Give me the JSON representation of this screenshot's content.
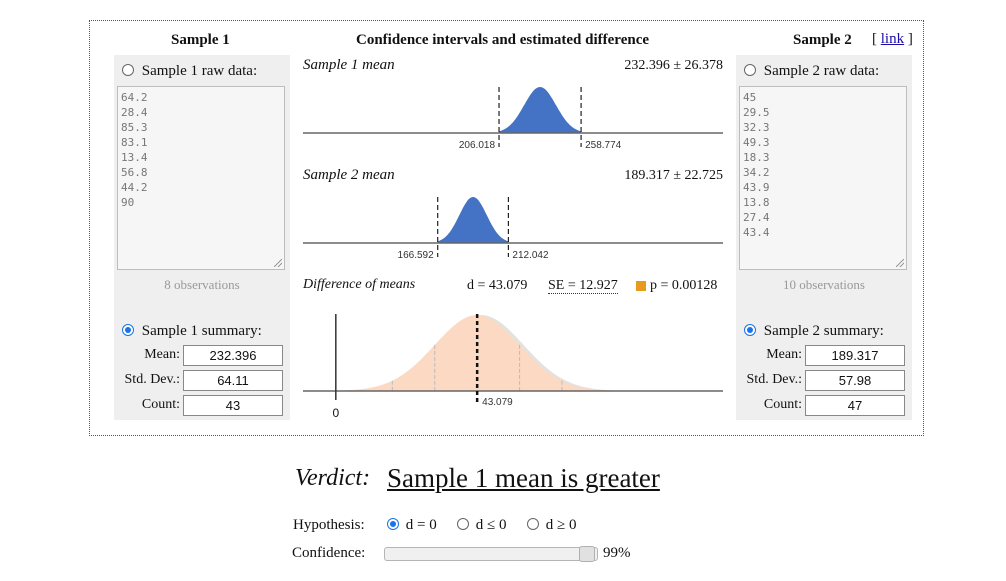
{
  "header": {
    "sample1_title": "Sample 1",
    "center_title": "Confidence intervals and estimated difference",
    "sample2_title": "Sample 2",
    "link_open": "[",
    "link_label": "link",
    "link_close": "]"
  },
  "sample1": {
    "raw_label": "Sample 1 raw data:",
    "raw_values": "64.2\n28.4\n85.3\n83.1\n13.4\n56.8\n44.2\n90",
    "observations": "8 observations",
    "summary_label": "Sample 1 summary:",
    "mean_label": "Mean:",
    "mean_value": "232.396",
    "sd_label": "Std. Dev.:",
    "sd_value": "64.11",
    "count_label": "Count:",
    "count_value": "43",
    "selected_mode": "summary"
  },
  "sample2": {
    "raw_label": "Sample 2 raw data:",
    "raw_values": "45\n29.5\n32.3\n49.3\n18.3\n34.2\n43.9\n13.8\n27.4\n43.4",
    "observations": "10 observations",
    "summary_label": "Sample 2 summary:",
    "mean_label": "Mean:",
    "mean_value": "189.317",
    "sd_label": "Std. Dev.:",
    "sd_value": "57.98",
    "count_label": "Count:",
    "count_value": "47",
    "selected_mode": "summary"
  },
  "plots": {
    "mean1": {
      "title": "Sample 1 mean",
      "value": "232.396 ± 26.378",
      "lo": "206.018",
      "hi": "258.774",
      "center": 232.396,
      "half": 26.378
    },
    "mean2": {
      "title": "Sample 2 mean",
      "value": "189.317 ± 22.725",
      "lo": "166.592",
      "hi": "212.042",
      "center": 189.317,
      "half": 22.725
    },
    "diff": {
      "title": "Difference of means",
      "d": "d = 43.079",
      "se": "SE = 12.927",
      "p": "p = 0.00128",
      "d_tick": "43.079",
      "zero_tick": "0",
      "d_value": 43.079,
      "se_value": 12.927
    }
  },
  "colors": {
    "mean_fill": "#4472c4",
    "diff_fill": "#fbd9c2",
    "p_marker": "#e69a1e",
    "accent": "#1a73e8"
  },
  "verdict": {
    "label": "Verdict:",
    "text": "Sample 1 mean is greater"
  },
  "hypothesis": {
    "label": "Hypothesis:",
    "options": [
      "d = 0",
      "d ≤ 0",
      "d ≥ 0"
    ],
    "selected": 0
  },
  "confidence": {
    "label": "Confidence:",
    "value": "99%",
    "level": 0.99
  }
}
